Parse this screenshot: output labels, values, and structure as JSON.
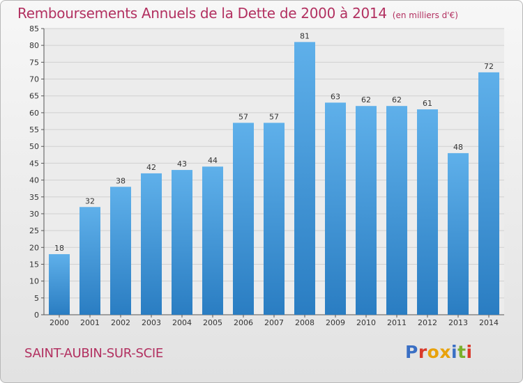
{
  "header": {
    "title": "Remboursements Annuels de la Dette de 2000 à 2014",
    "unit": "(en milliers d'€)"
  },
  "footer": {
    "commune": "SAINT-AUBIN-SUR-SCIE",
    "brand": "Proxiti",
    "brand_colors": [
      "#3a6fc4",
      "#d93a2b",
      "#e8a20c",
      "#e8a20c",
      "#3a6fc4",
      "#7ab02c",
      "#d93a2b"
    ]
  },
  "colors": {
    "bar_top": "#5fb0ea",
    "bar_bottom": "#2a7dc2",
    "title": "#b23060",
    "grid": "#d0d0d0"
  },
  "chart_data": {
    "type": "bar",
    "title": "Remboursements Annuels de la Dette de 2000 à 2014",
    "subtitle": "(en milliers d'€)",
    "xlabel": "",
    "ylabel": "",
    "categories": [
      "2000",
      "2001",
      "2002",
      "2003",
      "2004",
      "2005",
      "2006",
      "2007",
      "2008",
      "2009",
      "2010",
      "2011",
      "2012",
      "2013",
      "2014"
    ],
    "values": [
      18,
      32,
      38,
      42,
      43,
      44,
      57,
      57,
      81,
      63,
      62,
      62,
      61,
      48,
      72
    ],
    "ylim": [
      0,
      85
    ],
    "yticks": [
      0,
      5,
      10,
      15,
      20,
      25,
      30,
      35,
      40,
      45,
      50,
      55,
      60,
      65,
      70,
      75,
      80,
      85
    ],
    "grid": true,
    "data_labels": true,
    "legend": "none"
  }
}
